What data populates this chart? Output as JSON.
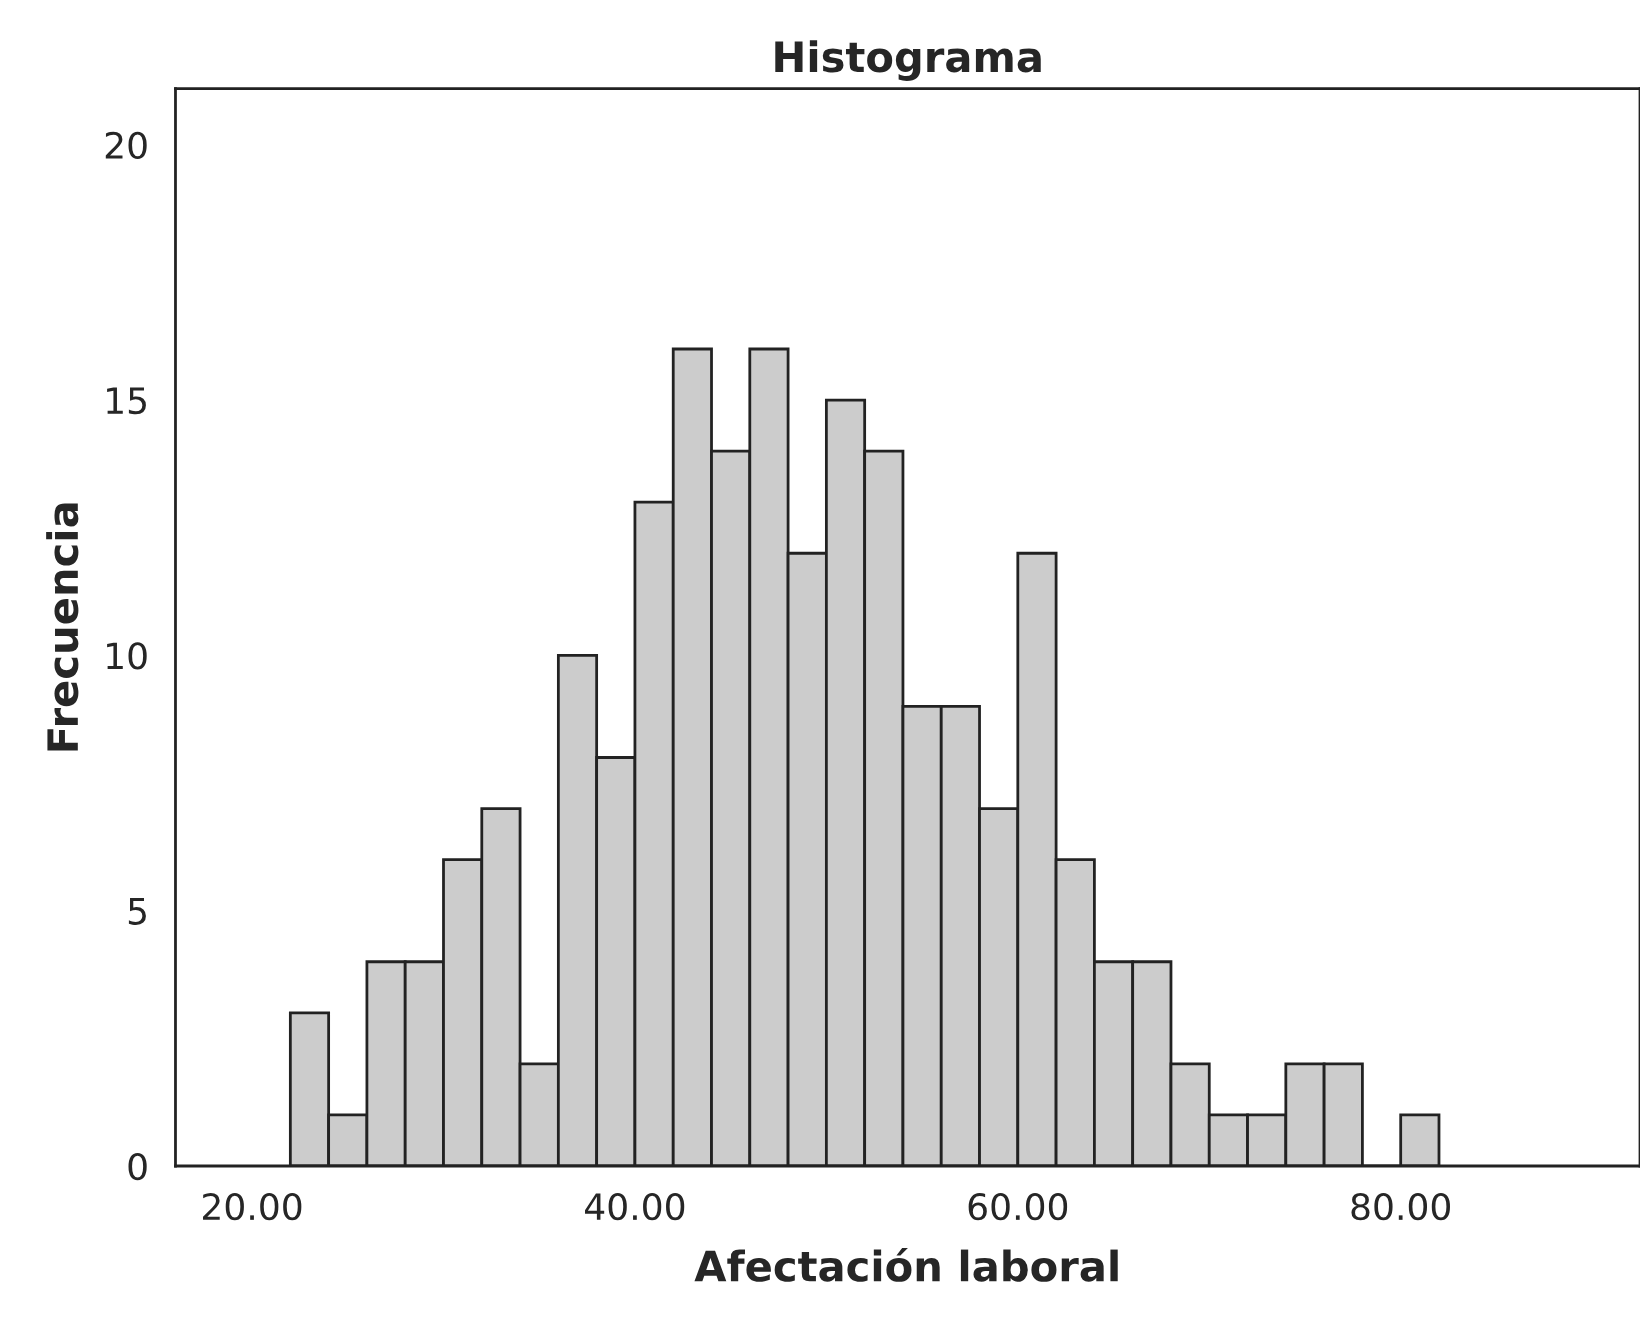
{
  "chart_data": {
    "type": "histogram",
    "title": "Histograma",
    "xlabel": "Afectación laboral",
    "ylabel": "Frecuencia",
    "bins": [
      22,
      24,
      26,
      28,
      30,
      32,
      34,
      36,
      38,
      40,
      42,
      44,
      46,
      48,
      50,
      52,
      54,
      56,
      58,
      60,
      62,
      64,
      66,
      68,
      70,
      72,
      74,
      76,
      78,
      80,
      82
    ],
    "values": [
      3,
      1,
      4,
      4,
      6,
      7,
      2,
      10,
      8,
      13,
      16,
      14,
      16,
      12,
      15,
      14,
      9,
      9,
      7,
      12,
      6,
      4,
      4,
      2,
      1,
      1,
      2,
      2,
      0,
      1
    ],
    "color": "#cccccc",
    "xlim": [
      16,
      92.5
    ],
    "ylim": [
      0,
      21.1
    ],
    "xticks": [
      {
        "value": 20,
        "label": "20.00"
      },
      {
        "value": 40,
        "label": "40.00"
      },
      {
        "value": 60,
        "label": "60.00"
      },
      {
        "value": 80,
        "label": "80.00"
      }
    ],
    "yticks": [
      0,
      5,
      10,
      15,
      20
    ],
    "grid": false
  }
}
